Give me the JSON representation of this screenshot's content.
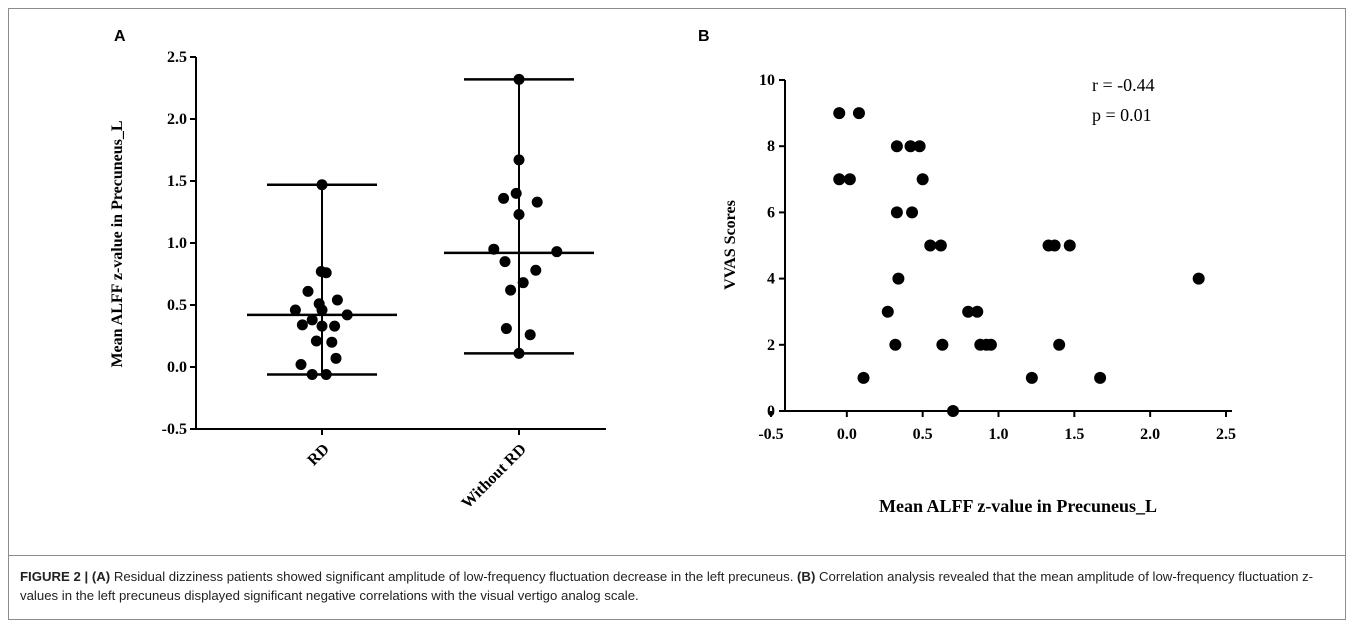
{
  "chart_data": [
    {
      "panel": "A",
      "type": "scatter",
      "ylabel": "Mean ALFF z-value in Precuneus_L",
      "ylim": [
        -0.5,
        2.5
      ],
      "yticks": [
        "-0.5",
        "0.0",
        "0.5",
        "1.0",
        "1.5",
        "2.0",
        "2.5"
      ],
      "categories": [
        "RD",
        "Without RD"
      ],
      "groups": [
        {
          "name": "RD",
          "median": 0.42,
          "min": -0.06,
          "max": 1.47,
          "points": [
            {
              "dx": 0.0,
              "y": 1.47
            },
            {
              "dx": -0.01,
              "y": 0.77
            },
            {
              "dx": 0.06,
              "y": 0.76
            },
            {
              "dx": -0.2,
              "y": 0.61
            },
            {
              "dx": 0.22,
              "y": 0.54
            },
            {
              "dx": -0.04,
              "y": 0.51
            },
            {
              "dx": 0.0,
              "y": 0.46
            },
            {
              "dx": -0.38,
              "y": 0.46
            },
            {
              "dx": 0.36,
              "y": 0.42
            },
            {
              "dx": -0.14,
              "y": 0.38
            },
            {
              "dx": -0.28,
              "y": 0.34
            },
            {
              "dx": 0.0,
              "y": 0.33
            },
            {
              "dx": 0.18,
              "y": 0.33
            },
            {
              "dx": -0.08,
              "y": 0.21
            },
            {
              "dx": 0.14,
              "y": 0.2
            },
            {
              "dx": -0.3,
              "y": 0.02
            },
            {
              "dx": 0.2,
              "y": 0.07
            },
            {
              "dx": -0.14,
              "y": -0.06
            },
            {
              "dx": 0.06,
              "y": -0.06
            }
          ]
        },
        {
          "name": "Without RD",
          "median": 0.92,
          "min": 0.11,
          "max": 2.32,
          "points": [
            {
              "dx": 0.0,
              "y": 2.32
            },
            {
              "dx": 0.0,
              "y": 1.67
            },
            {
              "dx": -0.04,
              "y": 1.4
            },
            {
              "dx": -0.22,
              "y": 1.36
            },
            {
              "dx": 0.26,
              "y": 1.33
            },
            {
              "dx": 0.0,
              "y": 1.23
            },
            {
              "dx": -0.36,
              "y": 0.95
            },
            {
              "dx": 0.54,
              "y": 0.93
            },
            {
              "dx": -0.2,
              "y": 0.85
            },
            {
              "dx": 0.24,
              "y": 0.78
            },
            {
              "dx": 0.06,
              "y": 0.68
            },
            {
              "dx": -0.12,
              "y": 0.62
            },
            {
              "dx": -0.18,
              "y": 0.31
            },
            {
              "dx": 0.16,
              "y": 0.26
            },
            {
              "dx": 0.0,
              "y": 0.11
            }
          ]
        }
      ]
    },
    {
      "panel": "B",
      "type": "scatter",
      "xlabel": "Mean ALFF z-value in Precuneus_L",
      "ylabel": "VVAS Scores",
      "xlim": [
        -0.5,
        2.5
      ],
      "ylim": [
        0,
        10
      ],
      "xticks": [
        "-0.5",
        "0.0",
        "0.5",
        "1.0",
        "1.5",
        "2.0",
        "2.5"
      ],
      "yticks": [
        "0",
        "2",
        "4",
        "6",
        "8",
        "10"
      ],
      "annotations": [
        "r = -0.44",
        "p = 0.01"
      ],
      "points": [
        [
          -0.05,
          9
        ],
        [
          0.08,
          9
        ],
        [
          -0.05,
          7
        ],
        [
          0.02,
          7
        ],
        [
          0.33,
          8
        ],
        [
          0.42,
          8
        ],
        [
          0.48,
          8
        ],
        [
          0.5,
          7
        ],
        [
          0.33,
          6
        ],
        [
          0.43,
          6
        ],
        [
          0.55,
          5
        ],
        [
          0.62,
          5
        ],
        [
          0.34,
          4
        ],
        [
          0.27,
          3
        ],
        [
          0.32,
          2
        ],
        [
          0.63,
          2
        ],
        [
          0.11,
          1
        ],
        [
          0.7,
          0
        ],
        [
          0.8,
          3
        ],
        [
          0.86,
          3
        ],
        [
          0.88,
          2
        ],
        [
          0.92,
          2
        ],
        [
          0.95,
          2
        ],
        [
          1.22,
          1
        ],
        [
          1.33,
          5
        ],
        [
          1.37,
          5
        ],
        [
          1.47,
          5
        ],
        [
          1.4,
          2
        ],
        [
          1.67,
          1
        ],
        [
          2.32,
          4
        ]
      ]
    }
  ],
  "panel_labels": {
    "a": "A",
    "b": "B"
  },
  "caption": {
    "figure_label": "FIGURE 2 | ",
    "part_a_tag": "(A)",
    "part_a_text": " Residual dizziness patients showed significant amplitude of low-frequency fluctuation decrease in the left precuneus. ",
    "part_b_tag": "(B)",
    "part_b_text": " Correlation analysis revealed that the mean amplitude of low-frequency fluctuation z-values in the left precuneus displayed significant negative correlations with the visual vertigo analog scale."
  }
}
